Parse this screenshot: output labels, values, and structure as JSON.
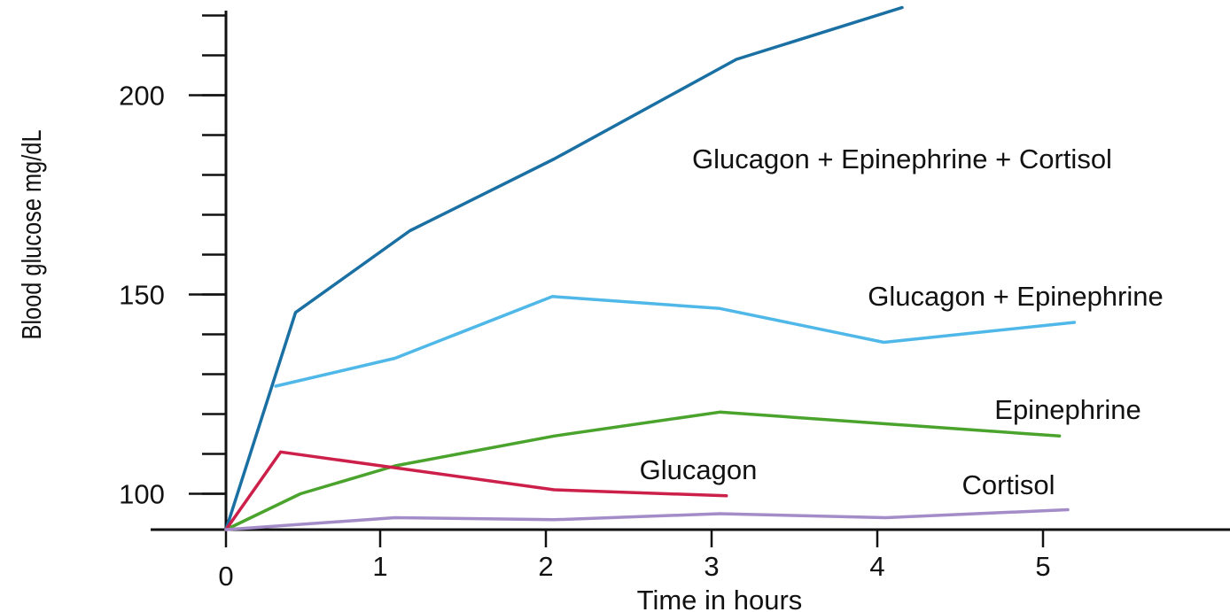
{
  "chart_data": {
    "type": "line",
    "title": "",
    "xlabel": "Time in hours",
    "ylabel": "Blood glucose mg/dL",
    "xlim": [
      0,
      6.6
    ],
    "ylim": [
      91,
      222
    ],
    "x_ticks": [
      0,
      1,
      2,
      3,
      4,
      5
    ],
    "x_tick_labels": [
      "0",
      "1",
      "2",
      "3",
      "4",
      "5"
    ],
    "y_ticks": [
      100,
      150,
      200
    ],
    "y_tick_labels": [
      "100",
      "150",
      "200"
    ],
    "y_minor_ticks": [
      100,
      110,
      120,
      130,
      140,
      150,
      160,
      170,
      180,
      190,
      200,
      210,
      220
    ],
    "grid": false,
    "legend": "none (series labelled directly on the plot)",
    "series": [
      {
        "name": "Glucagon + Epinephrine + Cortisol",
        "color": "#1a6fa3",
        "x": [
          0,
          0.42,
          1.11,
          1.98,
          3.08,
          4.08
        ],
        "y": [
          91,
          145.5,
          166,
          184,
          209,
          222
        ]
      },
      {
        "name": "Glucagon + Epinephrine",
        "color": "#4fb8e8",
        "x": [
          0.3,
          1.02,
          1.97,
          2.98,
          3.97,
          5.12
        ],
        "y": [
          127,
          134,
          149.5,
          146.5,
          138,
          143
        ]
      },
      {
        "name": "Epinephrine",
        "color": "#4aa32c",
        "x": [
          0,
          0.45,
          1.02,
          1.98,
          2.98,
          5.03
        ],
        "y": [
          91,
          100,
          107,
          114.5,
          120.5,
          114.5
        ]
      },
      {
        "name": "Glucagon",
        "color": "#cc1f4a",
        "x": [
          0,
          0.33,
          1.98,
          3.02
        ],
        "y": [
          91,
          110.5,
          101,
          99.5
        ]
      },
      {
        "name": "Cortisol",
        "color": "#a48cc8",
        "x": [
          0,
          1.02,
          1.98,
          2.98,
          3.98,
          5.08
        ],
        "y": [
          91,
          94,
          93.5,
          95,
          94,
          96
        ]
      }
    ]
  }
}
